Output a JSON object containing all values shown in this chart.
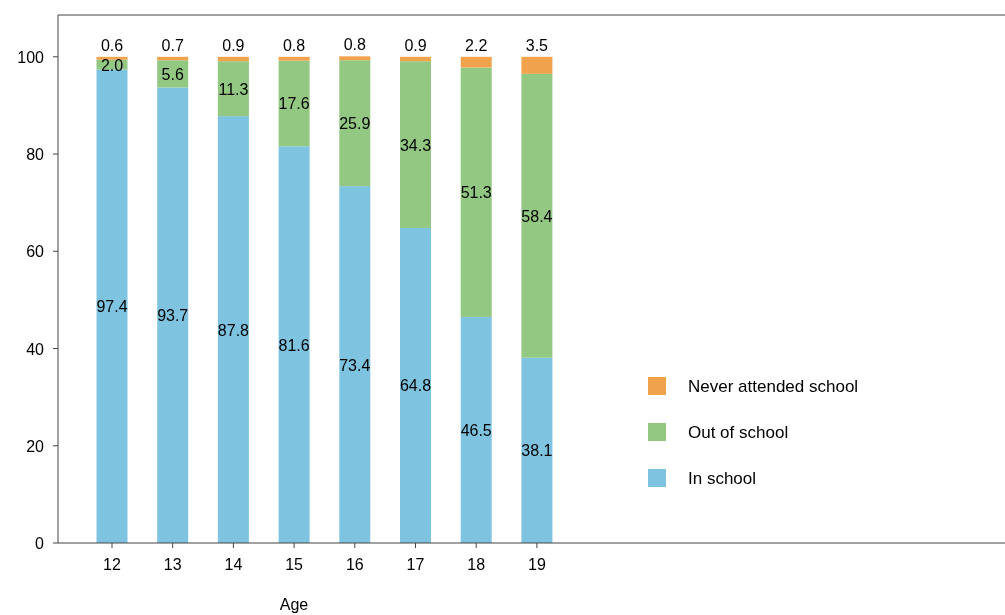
{
  "chart_data": {
    "type": "bar",
    "stacked": true,
    "xlabel": "Age",
    "categories": [
      "12",
      "13",
      "14",
      "15",
      "16",
      "17",
      "18",
      "19"
    ],
    "series": [
      {
        "name": "In school",
        "color": "#7ec4e1",
        "values": [
          97.4,
          93.7,
          87.8,
          81.6,
          73.4,
          64.8,
          46.5,
          38.1
        ]
      },
      {
        "name": "Out of school",
        "color": "#93c882",
        "values": [
          2.0,
          5.6,
          11.3,
          17.6,
          25.9,
          34.3,
          51.3,
          58.4
        ],
        "value_labels": [
          "2.0",
          "5.6",
          "11.3",
          "17.6",
          "25.9",
          "34.3",
          "51.3",
          "58.4"
        ]
      },
      {
        "name": "Never attended school",
        "color": "#f0a24c",
        "values": [
          0.6,
          0.7,
          0.9,
          0.8,
          0.8,
          0.9,
          2.2,
          3.5
        ]
      }
    ],
    "ylim": [
      0,
      108.6
    ],
    "yticks": [
      0,
      20,
      40,
      60,
      80,
      100
    ],
    "data_labels": true,
    "legend": "right",
    "grid": false
  }
}
